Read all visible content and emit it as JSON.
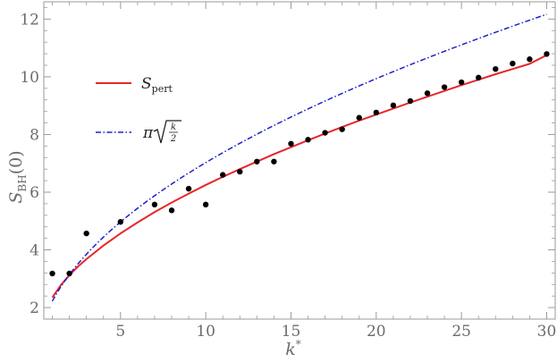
{
  "chart_data": {
    "type": "line",
    "xlabel_main": "k",
    "xlabel_sup": "*",
    "ylabel_main": "S",
    "ylabel_sub": "BH",
    "ylabel_arg": "(0)",
    "xlim": [
      0.5,
      30.5
    ],
    "ylim": [
      1.6,
      12.6
    ],
    "xticks": [
      5,
      10,
      15,
      20,
      25,
      30
    ],
    "yticks": [
      2,
      4,
      6,
      8,
      10,
      12
    ],
    "x_minor_step": 1,
    "y_minor_step": 0.4,
    "legend_position": "upper-left",
    "series": [
      {
        "name_main": "S",
        "name_sub": "pert",
        "style": "solid",
        "color": "#e8262a",
        "x": [
          1,
          1.5,
          2,
          2.5,
          3,
          4,
          5,
          6,
          7,
          8,
          9,
          10,
          11,
          12,
          13,
          14,
          15,
          16,
          17,
          18,
          19,
          20,
          21,
          22,
          23,
          24,
          25,
          26,
          27,
          28,
          29,
          30
        ],
        "y": [
          2.35,
          2.78,
          3.12,
          3.42,
          3.68,
          4.15,
          4.57,
          4.95,
          5.31,
          5.64,
          5.95,
          6.25,
          6.53,
          6.8,
          7.06,
          7.32,
          7.56,
          7.8,
          8.03,
          8.26,
          8.48,
          8.69,
          8.9,
          9.11,
          9.31,
          9.51,
          9.71,
          9.9,
          10.09,
          10.27,
          10.45,
          10.75
        ]
      },
      {
        "name_pi": "π",
        "name_num": "k",
        "name_den": "2",
        "style": "dash-dot",
        "color": "#2020c8",
        "function": "pi*sqrt(x/2)",
        "x_start": 1,
        "x_end": 30
      },
      {
        "name": "",
        "style": "points",
        "color": "#000000",
        "x": [
          1,
          2,
          3,
          5,
          7,
          8,
          9,
          10,
          11,
          12,
          13,
          14,
          15,
          16,
          17,
          18,
          19,
          20,
          21,
          22,
          23,
          24,
          25,
          26,
          27,
          28,
          29,
          30
        ],
        "y": [
          3.18,
          3.18,
          4.57,
          4.97,
          5.57,
          5.37,
          6.12,
          5.57,
          6.6,
          6.71,
          7.06,
          7.06,
          7.68,
          7.82,
          8.06,
          8.18,
          8.58,
          8.76,
          9.01,
          9.16,
          9.43,
          9.64,
          9.81,
          9.97,
          10.27,
          10.46,
          10.61,
          10.79
        ]
      }
    ]
  }
}
